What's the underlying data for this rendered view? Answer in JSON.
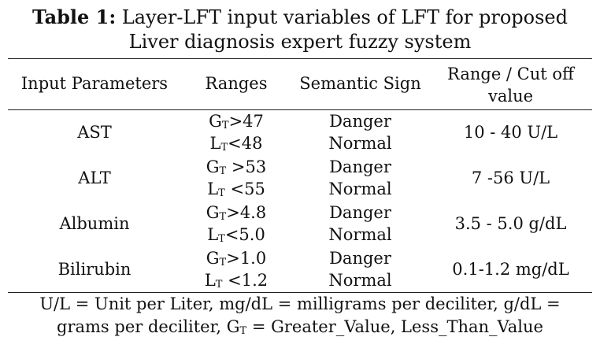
{
  "caption": {
    "label": "Table 1:",
    "line1": "Layer-LFT input variables of LFT for proposed",
    "line2": "Liver diagnosis expert fuzzy system"
  },
  "headers": {
    "parameters": "Input Parameters",
    "ranges": "Ranges",
    "semantic": "Semantic Sign",
    "cutoff_line1": "Range / Cut off",
    "cutoff_line2": "value"
  },
  "rows": [
    {
      "parameter": "AST",
      "g_prefix": "G",
      "g_sub": "T",
      "g_value": ">47",
      "l_prefix": "L",
      "l_sub": "T",
      "l_value": "<48",
      "danger": "Danger",
      "normal": "Normal",
      "cutoff": "10 - 40 U/L"
    },
    {
      "parameter": "ALT",
      "g_prefix": "G",
      "g_sub": "T",
      "g_value": " >53",
      "l_prefix": "L",
      "l_sub": "T",
      "l_value": " <55",
      "danger": "Danger",
      "normal": "Normal",
      "cutoff": "7 -56 U/L"
    },
    {
      "parameter": "Albumin",
      "g_prefix": "G",
      "g_sub": "T",
      "g_value": ">4.8",
      "l_prefix": "L",
      "l_sub": "T",
      "l_value": "<5.0",
      "danger": "Danger",
      "normal": "Normal",
      "cutoff": "3.5 - 5.0 g/dL"
    },
    {
      "parameter": "Bilirubin",
      "g_prefix": "G",
      "g_sub": "T",
      "g_value": ">1.0",
      "l_prefix": "L",
      "l_sub": "T",
      "l_value": " <1.2",
      "danger": "Danger",
      "normal": "Normal",
      "cutoff": "0.1-1.2 mg/dL"
    }
  ],
  "footnote": {
    "line1": "U/L = Unit per Liter, mg/dL = milligrams per deciliter, g/dL =",
    "line2_start": "grams per deciliter, G",
    "line2_sub": "T",
    "line2_end": " = Greater_Value, Less_Than_Value"
  }
}
